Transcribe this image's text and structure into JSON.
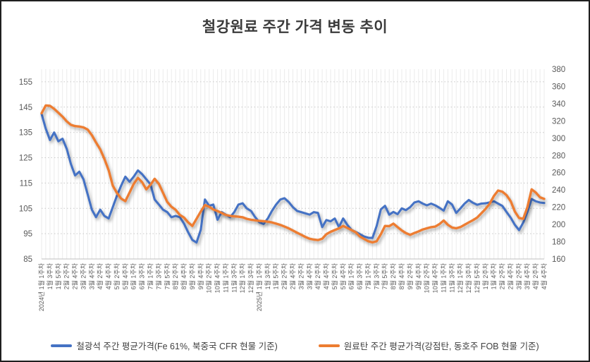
{
  "title": "철강원료 주간 가격 변동 추이",
  "legend": {
    "iron_ore_label": "철광석 주간 평균가격(Fe 61%, 북중국 CFR 현물 기준)",
    "coking_coal_label": "원료탄 주간 평균가격(강점탄, 동호주 FOB 현물 기준)"
  },
  "colors": {
    "iron_ore": "#4472C4",
    "coking_coal": "#ED7D31",
    "title_text": "#3b3b3b",
    "axis_text": "#595959",
    "gridline_h": "#c8c8c8",
    "gridline_v": "#ebebeb",
    "axis_line": "#bfbfbf"
  },
  "chart_data": {
    "type": "line",
    "title": "철강원료 주간 가격 변동 추이",
    "grid": "horizontal-dotted plus dense weekly vertical",
    "legend_position": "bottom",
    "left_axis": {
      "min": 85,
      "max": 160,
      "tick_labels": [
        "85",
        "95",
        "105",
        "115",
        "125",
        "135",
        "145",
        "155"
      ],
      "tick_values": [
        85,
        95,
        105,
        115,
        125,
        135,
        145,
        155
      ]
    },
    "right_axis": {
      "min": 160,
      "max": 380,
      "tick_labels": [
        "160",
        "180",
        "200",
        "220",
        "240",
        "260",
        "280",
        "300",
        "320",
        "340",
        "360",
        "380"
      ],
      "tick_values": [
        160,
        180,
        200,
        220,
        240,
        260,
        280,
        300,
        320,
        340,
        360,
        380
      ]
    },
    "x_tick_labels_every_2_weeks": [
      "2024년 1월 1주차",
      "1월 3주차",
      "1월 5주차",
      "2월 2주차",
      "2월 4주차",
      "3월 2주차",
      "3월 4주차",
      "4월 2주차",
      "4월 4주차",
      "5월 2주차",
      "5월 4주차",
      "6월 1주차",
      "6월 3주차",
      "7월 1주차",
      "7월 3주차",
      "7월 5주차",
      "8월 2주차",
      "8월 4주차",
      "9월 2주차",
      "9월 4주차",
      "10월 2주차",
      "10월 4주차",
      "11월 1주차",
      "11월 3주차",
      "12월 1주차",
      "12월 3주차",
      "2025년 1월 1주차",
      "1월 3주차",
      "1월 5주차",
      "2월 2주차",
      "2월 4주차",
      "3월 2주차",
      "3월 4주차",
      "4월 2주차",
      "4월 4주차",
      "5월 2주차",
      "5월 4주차",
      "6월 1주차",
      "6월 3주차",
      "7월 1주차",
      "7월 3주차",
      "7월 5주차",
      "8월 2주차",
      "8월 4주차",
      "9월 2주차",
      "9월 4주차",
      "10월 2주차",
      "10월 4주차",
      "11월 1주차",
      "11월 3주차",
      "12월 1주차",
      "12월 3주차",
      "12월 5주차",
      "1월 2주차",
      "1월 4주차",
      "2월 2주차",
      "2월 4주차",
      "3월 2주차",
      "3월 4주차",
      "4월 2주차",
      "4월 4주차"
    ],
    "series": [
      {
        "name": "철광석 주간 평균가격(Fe 61%, 북중국 CFR 현물 기준)",
        "axis": "left",
        "color": "#4472C4",
        "values": [
          142.3,
          136.5,
          132,
          135,
          131.5,
          132.5,
          128.5,
          122.5,
          118,
          119.5,
          116.5,
          110.5,
          104.5,
          101.5,
          104.5,
          102,
          101,
          105.5,
          110,
          114,
          117.5,
          115.5,
          117.5,
          120,
          118.5,
          116.5,
          114.5,
          108.5,
          106.5,
          104.5,
          103.5,
          101.5,
          102,
          101.5,
          99,
          95.5,
          92.5,
          91.5,
          96.5,
          108.5,
          106,
          106.5,
          100.5,
          103.5,
          102.5,
          101.5,
          103.5,
          106.5,
          107,
          105,
          104,
          101.5,
          99.5,
          98.8,
          101,
          104,
          106.5,
          108.5,
          109,
          107.5,
          105.5,
          104,
          103.5,
          103,
          102.5,
          103.5,
          103.2,
          97.6,
          100.4,
          99.9,
          101,
          97.6,
          101,
          98.5,
          96.5,
          95.7,
          94.8,
          93.9,
          93.4,
          93.3,
          98,
          104.6,
          106,
          102.5,
          103.6,
          102.7,
          105,
          104.3,
          105.5,
          107.3,
          107.8,
          106.9,
          106.2,
          106.9,
          106.2,
          105.2,
          104.1,
          107.8,
          106.5,
          103.2,
          105,
          106.9,
          108.3,
          107.2,
          106.4,
          106.9,
          107,
          107.4,
          107.8,
          106.9,
          106,
          103.6,
          101.3,
          98.5,
          96.4,
          99.4,
          103.6,
          108.7,
          107.8,
          107.3,
          107.1
        ]
      },
      {
        "name": "원료탄 주간 평균가격(강점탄, 동호주 FOB 현물 기준)",
        "axis": "right",
        "color": "#ED7D31",
        "values": [
          329,
          338,
          337.5,
          334,
          329.5,
          325,
          319.5,
          315.5,
          314,
          313.5,
          312.5,
          310,
          303.5,
          295,
          287,
          276,
          263,
          245,
          236.5,
          230,
          227,
          237,
          247,
          254,
          249,
          240.7,
          246,
          252.9,
          247,
          236.6,
          226,
          220.5,
          217,
          211,
          208,
          202.4,
          198.3,
          206.5,
          215,
          222.5,
          220.5,
          217.4,
          215.5,
          213.3,
          211,
          210,
          209.4,
          209,
          208.3,
          206.5,
          205.5,
          204.8,
          204.2,
          203.8,
          203.2,
          202.4,
          201,
          199.5,
          197.5,
          195.5,
          193,
          190.5,
          188,
          185.5,
          183.5,
          182.5,
          181.9,
          183.5,
          188.7,
          191.5,
          193.5,
          195.5,
          198.3,
          196,
          193.5,
          191,
          186,
          183.3,
          180.5,
          179.2,
          180.5,
          188.7,
          198.3,
          198,
          201,
          197,
          193,
          190,
          188,
          190.1,
          192,
          194.2,
          195.6,
          196.9,
          197.5,
          200.5,
          204.6,
          199.7,
          196.5,
          195.6,
          197,
          199.7,
          202.4,
          205,
          208,
          213,
          218,
          224.2,
          233,
          239.3,
          238,
          234,
          227,
          215,
          207.5,
          206.5,
          220.2,
          240.7,
          237,
          231.5,
          229.7
        ]
      }
    ]
  }
}
